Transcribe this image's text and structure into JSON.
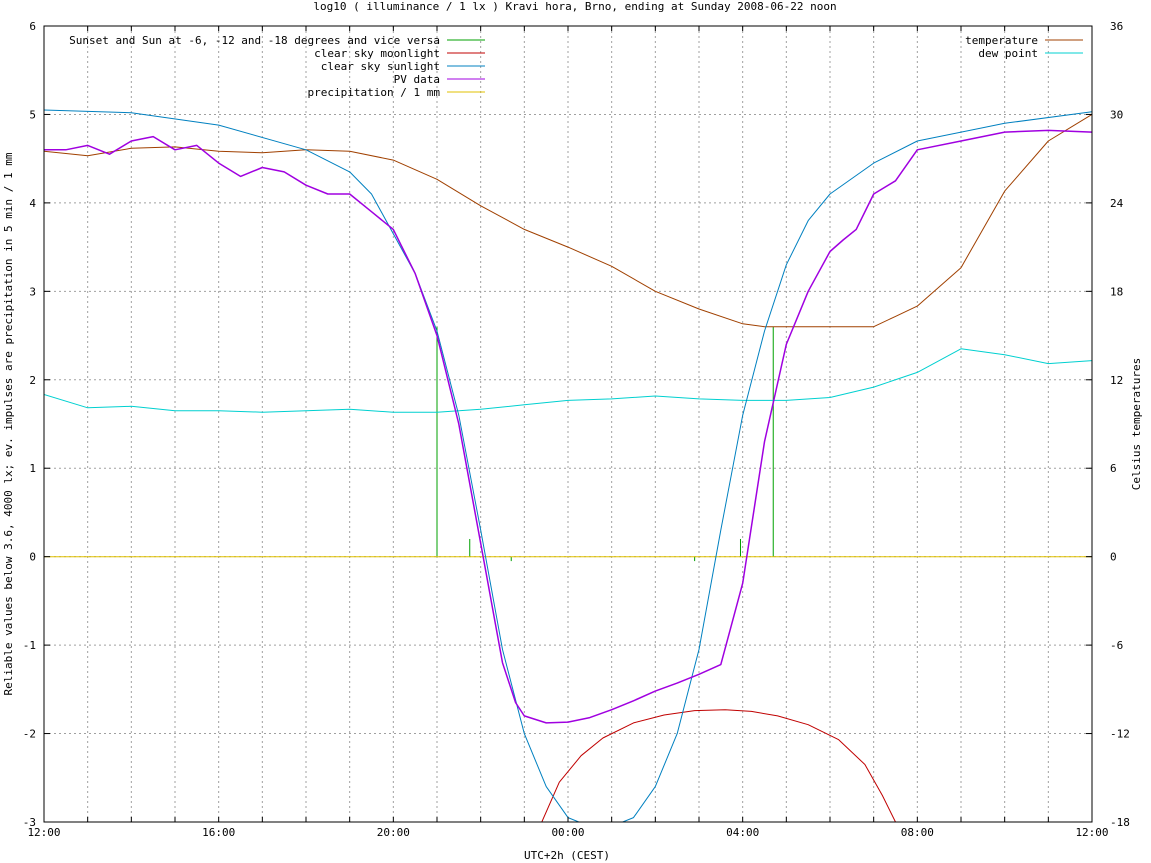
{
  "chart_data": {
    "type": "line",
    "title": "log10 ( illuminance / 1 lx ) Kravi hora, Brno, ending at Sunday 2008-06-22 noon",
    "xlabel": "UTC+2h (CEST)",
    "ylabel": "Reliable values below 3.6, 4000 lx; ev. impulses are precipitation in 5 min / 1 mm",
    "y2label": "Celsius temperatures",
    "xlim_hours_from_noon": [
      0,
      24
    ],
    "x_ticks": [
      "12:00",
      "16:00",
      "20:00",
      "00:00",
      "04:00",
      "08:00",
      "12:00"
    ],
    "ylim": [
      -3,
      6
    ],
    "y_ticks": [
      "-3",
      "-2",
      "-1",
      "0",
      "1",
      "2",
      "3",
      "4",
      "5",
      "6"
    ],
    "y2lim": [
      -18,
      36
    ],
    "y2_ticks": [
      "-18",
      "-12",
      "-6",
      "0",
      "6",
      "12",
      "18",
      "24",
      "30",
      "36"
    ],
    "grid": true,
    "legend_left": [
      {
        "name": "Sunset and Sun at -6, -12 and -18 degrees and vice versa",
        "color": "#00a000"
      },
      {
        "name": "clear sky moonlight",
        "color": "#c00000"
      },
      {
        "name": "clear sky sunlight",
        "color": "#0080c0"
      },
      {
        "name": "PV data",
        "color": "#a000e0"
      },
      {
        "name": "precipitation / 1 mm",
        "color": "#e0c000"
      }
    ],
    "legend_right": [
      {
        "name": "temperature",
        "color": "#a04000"
      },
      {
        "name": "dew point",
        "color": "#00d0d0"
      }
    ],
    "sun_events": [
      {
        "x": 9.0,
        "y_top": 2.6
      },
      {
        "x": 9.75,
        "y_top": 0.2
      },
      {
        "x": 10.7,
        "y_top": -0.05
      },
      {
        "x": 14.9,
        "y_top": -0.05
      },
      {
        "x": 15.95,
        "y_top": 0.2
      },
      {
        "x": 16.7,
        "y_top": 2.6
      }
    ],
    "series": [
      {
        "name": "clear sky sunlight",
        "axis": "left",
        "x": [
          0,
          2,
          4,
          6,
          7,
          7.5,
          8,
          8.5,
          9,
          9.5,
          10,
          10.5,
          11,
          11.5,
          12,
          12.5,
          13,
          13.5,
          14,
          14.5,
          15,
          15.5,
          16,
          16.5,
          17,
          17.5,
          18,
          19,
          20,
          22,
          24
        ],
        "y": [
          5.05,
          5.02,
          4.88,
          4.6,
          4.35,
          4.1,
          3.65,
          3.2,
          2.55,
          1.6,
          0.3,
          -1.05,
          -2.0,
          -2.6,
          -2.95,
          -3.05,
          -3.05,
          -2.95,
          -2.6,
          -2.0,
          -1.05,
          0.3,
          1.6,
          2.55,
          3.3,
          3.8,
          4.1,
          4.45,
          4.7,
          4.9,
          5.03
        ]
      },
      {
        "name": "clear sky moonlight",
        "axis": "left",
        "x": [
          11.4,
          11.8,
          12.3,
          12.8,
          13.5,
          14.2,
          14.9,
          15.6,
          16.2,
          16.8,
          17.5,
          18.2,
          18.8,
          19.2,
          19.5
        ],
        "y": [
          -3.0,
          -2.55,
          -2.25,
          -2.05,
          -1.88,
          -1.79,
          -1.74,
          -1.73,
          -1.75,
          -1.8,
          -1.9,
          -2.07,
          -2.35,
          -2.7,
          -3.0
        ]
      },
      {
        "name": "PV data",
        "axis": "left",
        "x": [
          0,
          0.5,
          1,
          1.5,
          2,
          2.5,
          3,
          3.5,
          4,
          4.5,
          5,
          5.5,
          6,
          6.5,
          7,
          7.5,
          8,
          8.5,
          9,
          9.5,
          10,
          10.5,
          10.8,
          11,
          11.5,
          12,
          12.5,
          13,
          13.5,
          14,
          14.5,
          15,
          15.5,
          16,
          16.5,
          17,
          17.5,
          18,
          18.3,
          18.6,
          19,
          19.5,
          20,
          21,
          22,
          23,
          24
        ],
        "y": [
          4.6,
          4.6,
          4.65,
          4.55,
          4.7,
          4.75,
          4.6,
          4.65,
          4.45,
          4.3,
          4.4,
          4.35,
          4.2,
          4.1,
          4.1,
          3.9,
          3.7,
          3.2,
          2.5,
          1.5,
          0.15,
          -1.2,
          -1.65,
          -1.8,
          -1.88,
          -1.87,
          -1.82,
          -1.73,
          -1.63,
          -1.52,
          -1.43,
          -1.33,
          -1.22,
          -0.3,
          1.3,
          2.4,
          3.0,
          3.45,
          3.58,
          3.7,
          4.1,
          4.25,
          4.6,
          4.7,
          4.8,
          4.82,
          4.8
        ]
      },
      {
        "name": "precipitation / 1 mm",
        "axis": "left",
        "x": [
          0,
          24
        ],
        "y": [
          0,
          0
        ]
      },
      {
        "name": "temperature",
        "axis": "right",
        "x": [
          0,
          1,
          2,
          3,
          4,
          5,
          6,
          7,
          8,
          9,
          10,
          11,
          12,
          13,
          14,
          15,
          16,
          16.5,
          17,
          18,
          19,
          19.5,
          20,
          21,
          22,
          23,
          24
        ],
        "y": [
          27.5,
          27.2,
          27.7,
          27.8,
          27.5,
          27.4,
          27.6,
          27.5,
          26.9,
          25.6,
          23.8,
          22.2,
          21.0,
          19.7,
          18.0,
          16.8,
          15.8,
          15.6,
          15.6,
          15.6,
          15.6,
          16.3,
          17.0,
          19.6,
          24.8,
          28.2,
          30.0
        ]
      },
      {
        "name": "dew point",
        "axis": "right",
        "x": [
          0,
          1,
          2,
          3,
          4,
          5,
          6,
          7,
          8,
          9,
          10,
          11,
          12,
          13,
          14,
          15,
          16,
          17,
          18,
          19,
          20,
          21,
          22,
          23,
          24
        ],
        "y": [
          11.0,
          10.1,
          10.2,
          9.9,
          9.9,
          9.8,
          9.9,
          10.0,
          9.8,
          9.8,
          10.0,
          10.3,
          10.6,
          10.7,
          10.9,
          10.7,
          10.6,
          10.6,
          10.8,
          11.5,
          12.5,
          14.1,
          13.7,
          13.1,
          13.3
        ]
      }
    ]
  }
}
